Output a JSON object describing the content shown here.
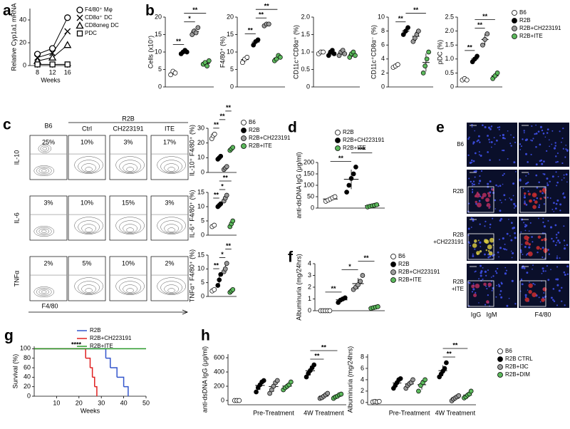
{
  "panel_labels": [
    "a",
    "b",
    "c",
    "d",
    "e",
    "f",
    "g",
    "h"
  ],
  "chart_data": [
    {
      "type": "line",
      "ylabel": "Relative Cyp1a1 mRNA",
      "xlabel": "Weeks",
      "x": [
        8,
        12,
        16
      ],
      "xlim": [
        6,
        17
      ],
      "xticks": [
        8,
        12,
        16
      ],
      "ylim": [
        0,
        50
      ],
      "yticks": [
        0,
        20,
        40
      ],
      "series": [
        {
          "name": "F4/80⁺ Mφ",
          "marker": "circle",
          "color": "#000000",
          "values": [
            10,
            15,
            42
          ]
        },
        {
          "name": "CD8α⁺ DC",
          "marker": "x",
          "color": "#000000",
          "values": [
            7,
            11,
            30
          ]
        },
        {
          "name": "CD8αneg DC",
          "marker": "triangle",
          "color": "#000000",
          "values": [
            4,
            7,
            18
          ]
        },
        {
          "name": "PDC",
          "marker": "square",
          "color": "#000000",
          "values": [
            1,
            1,
            1
          ]
        }
      ]
    },
    {
      "type": "dot",
      "ylabel": "Cells (x10⁷)",
      "ylim": [
        0,
        20
      ],
      "yticks": [
        0,
        5,
        10,
        15,
        20
      ],
      "series": [
        {
          "name": "B6",
          "color": "#ffffff",
          "values": [
            3.5,
            4.5,
            4
          ]
        },
        {
          "name": "R2B",
          "color": "#000000",
          "values": [
            9.5,
            10,
            10.5,
            10
          ]
        },
        {
          "name": "R2B+CH223191",
          "color": "#9a9a9a",
          "values": [
            15,
            16,
            15.5,
            17
          ]
        },
        {
          "name": "R2B+ITE",
          "color": "#5cb85c",
          "values": [
            6.5,
            7,
            6,
            7.5
          ]
        }
      ],
      "annotations": [
        {
          "text": "**",
          "from": 0,
          "to": 1
        },
        {
          "text": "*",
          "from": 1,
          "to": 2
        },
        {
          "text": "**",
          "from": 1,
          "to": 3
        }
      ]
    },
    {
      "type": "dot",
      "ylabel": "F4/80⁺ (%)",
      "ylim": [
        0,
        20
      ],
      "yticks": [
        0,
        5,
        10,
        15,
        20
      ],
      "series": [
        {
          "color": "#ffffff",
          "values": [
            7,
            8,
            8.5
          ]
        },
        {
          "color": "#000000",
          "values": [
            12,
            13,
            13.5
          ]
        },
        {
          "color": "#9a9a9a",
          "values": [
            17.5,
            18,
            18
          ]
        },
        {
          "color": "#5cb85c",
          "values": [
            7.5,
            8,
            9,
            8.5
          ]
        }
      ],
      "annotations": [
        {
          "text": "**",
          "from": 0,
          "to": 1
        },
        {
          "text": "**",
          "from": 1,
          "to": 2
        },
        {
          "text": "**",
          "from": 1,
          "to": 3
        }
      ]
    },
    {
      "type": "dot",
      "ylabel": "CD11c⁺CD8α⁺ (%)",
      "ylim": [
        0,
        2
      ],
      "yticks": [
        0,
        0.5,
        {
          "value": 1,
          "label": "1.0"
        },
        1.5,
        {
          "value": 2,
          "label": "2.0"
        }
      ],
      "series": [
        {
          "color": "#ffffff",
          "values": [
            0.95,
            1,
            1
          ]
        },
        {
          "color": "#000000",
          "values": [
            0.9,
            1,
            1.05,
            0.95
          ]
        },
        {
          "color": "#9a9a9a",
          "values": [
            0.9,
            1,
            1.05,
            0.95
          ]
        },
        {
          "color": "#5cb85c",
          "values": [
            0.85,
            0.95,
            1,
            0.9
          ]
        }
      ]
    },
    {
      "type": "dot",
      "ylabel": "CD11c⁺CD8α⁻ (%)",
      "ylim": [
        0,
        10
      ],
      "yticks": [
        0,
        2,
        4,
        6,
        8,
        10
      ],
      "series": [
        {
          "color": "#ffffff",
          "values": [
            2.8,
            3,
            3.2
          ]
        },
        {
          "color": "#000000",
          "values": [
            7.5,
            8,
            8.5
          ]
        },
        {
          "color": "#9a9a9a",
          "values": [
            6.5,
            7,
            7.5,
            8
          ]
        },
        {
          "color": "#5cb85c",
          "values": [
            2,
            3,
            4,
            5
          ]
        }
      ],
      "annotations": [
        {
          "text": "**",
          "from": 0,
          "to": 1
        },
        {
          "text": "**",
          "from": 1,
          "to": 3
        }
      ]
    },
    {
      "type": "dot",
      "ylabel": "pDC (%)",
      "ylim": [
        0,
        2.5
      ],
      "yticks": [
        0,
        0.5,
        {
          "value": 1,
          "label": "1.0"
        },
        1.5,
        {
          "value": 2,
          "label": "2.0"
        },
        2.5
      ],
      "series": [
        {
          "color": "#ffffff",
          "values": [
            0.25,
            0.3,
            0.25
          ]
        },
        {
          "color": "#000000",
          "values": [
            0.9,
            1,
            1.1
          ]
        },
        {
          "color": "#9a9a9a",
          "values": [
            1.5,
            1.7,
            1.9
          ]
        },
        {
          "color": "#5cb85c",
          "values": [
            0.3,
            0.4,
            0.5
          ]
        }
      ],
      "annotations": [
        {
          "text": "**",
          "from": 0,
          "to": 1
        },
        {
          "text": "**",
          "from": 1,
          "to": 2
        },
        {
          "text": "**",
          "from": 1,
          "to": 3
        }
      ]
    },
    {
      "type": "dot",
      "ylabel": "IL-10⁺ F4/80⁺ (%)",
      "ylim": [
        0,
        30
      ],
      "yticks": [
        0,
        10,
        20,
        30
      ],
      "series": [
        {
          "name": "B6",
          "color": "#ffffff",
          "values": [
            23,
            25,
            26
          ]
        },
        {
          "name": "R2B",
          "color": "#000000",
          "values": [
            9,
            10,
            11
          ]
        },
        {
          "name": "R2B+CH223191",
          "color": "#9a9a9a",
          "values": [
            2,
            3,
            4
          ]
        },
        {
          "name": "R2B+ITE",
          "color": "#5cb85c",
          "values": [
            15,
            16,
            17
          ]
        }
      ],
      "annotations": [
        {
          "text": "**",
          "from": 0,
          "to": 1
        },
        {
          "text": "**",
          "from": 1,
          "to": 2
        },
        {
          "text": "**",
          "from": 2,
          "to": 3
        }
      ]
    },
    {
      "type": "dot",
      "ylabel": "IL-6⁺ F4/80⁺ (%)",
      "ylim": [
        0,
        15
      ],
      "yticks": [
        0,
        5,
        10,
        15
      ],
      "series": [
        {
          "color": "#ffffff",
          "values": [
            3,
            3.5
          ]
        },
        {
          "color": "#000000",
          "values": [
            10,
            10.5,
            11
          ]
        },
        {
          "color": "#9a9a9a",
          "values": [
            12,
            13,
            14
          ]
        },
        {
          "color": "#5cb85c",
          "values": [
            3,
            4,
            5
          ]
        }
      ],
      "annotations": [
        {
          "text": "**",
          "from": 0,
          "to": 1
        },
        {
          "text": "*",
          "from": 1,
          "to": 2
        },
        {
          "text": "**",
          "from": 1,
          "to": 3
        }
      ]
    },
    {
      "type": "dot",
      "ylabel": "TNFα⁺ F4/80⁺ (%)",
      "ylim": [
        0,
        15
      ],
      "yticks": [
        0,
        5,
        10,
        15
      ],
      "series": [
        {
          "color": "#ffffff",
          "values": [
            2,
            2.5
          ]
        },
        {
          "color": "#000000",
          "values": [
            4,
            6,
            8
          ]
        },
        {
          "color": "#9a9a9a",
          "values": [
            9,
            10,
            12
          ]
        },
        {
          "color": "#5cb85c",
          "values": [
            1.5,
            2,
            2.5
          ]
        }
      ],
      "annotations": [
        {
          "text": "**",
          "from": 0,
          "to": 1
        },
        {
          "text": "*",
          "from": 1,
          "to": 2
        },
        {
          "text": "**",
          "from": 2,
          "to": 3
        }
      ]
    },
    {
      "type": "dot",
      "ylabel": "anti-dsDNA IgG (μg/ml)",
      "ylim": [
        0,
        200
      ],
      "yticks": [
        0,
        50,
        100,
        150,
        200
      ],
      "series": [
        {
          "name": "R2B",
          "color": "#ffffff",
          "values": [
            30,
            35,
            40,
            45,
            50
          ]
        },
        {
          "name": "R2B+CH223191",
          "color": "#000000",
          "values": [
            70,
            100,
            130,
            150,
            180
          ]
        },
        {
          "name": "R2B+ITE",
          "color": "#5cb85c",
          "values": [
            5,
            8,
            10,
            12,
            15
          ]
        }
      ],
      "annotations": [
        {
          "text": "**",
          "from": 0,
          "to": 1
        },
        {
          "text": "***",
          "from": 1,
          "to": 2
        }
      ]
    },
    {
      "type": "dot",
      "ylabel": "Albuminuria (mg/24hrs)",
      "ylim": [
        0,
        4
      ],
      "yticks": [
        0,
        1,
        2,
        3,
        4
      ],
      "series": [
        {
          "name": "B6",
          "color": "#ffffff",
          "values": [
            0,
            0,
            0,
            0,
            0
          ]
        },
        {
          "name": "R2B",
          "color": "#000000",
          "values": [
            0.7,
            0.9,
            1,
            1.1
          ]
        },
        {
          "name": "R2B+CH223191",
          "color": "#9a9a9a",
          "values": [
            1.8,
            2,
            2.2,
            2.5,
            3
          ]
        },
        {
          "name": "R2B+ITE",
          "color": "#5cb85c",
          "values": [
            0.2,
            0.25,
            0.3,
            0.35
          ]
        }
      ],
      "annotations": [
        {
          "text": "**",
          "from": 0,
          "to": 1
        },
        {
          "text": "*",
          "from": 1,
          "to": 2
        },
        {
          "text": "**",
          "from": 2,
          "to": 3
        }
      ]
    },
    {
      "type": "step",
      "ylabel": "Survival (%)",
      "xlabel": "Weeks",
      "xlim": [
        0,
        50
      ],
      "xticks": [
        10,
        20,
        30,
        40,
        50
      ],
      "ylim": [
        0,
        105
      ],
      "yticks": [
        0,
        20,
        40,
        60,
        80,
        100
      ],
      "annotation": "****",
      "series": [
        {
          "name": "R2B",
          "color": "#3355cc",
          "x": [
            0,
            32,
            34,
            37,
            40,
            42
          ],
          "values": [
            100,
            80,
            60,
            40,
            20,
            0
          ]
        },
        {
          "name": "R2B+CH223191",
          "color": "#e02020",
          "x": [
            0,
            23,
            25,
            26,
            27,
            28
          ],
          "values": [
            100,
            80,
            60,
            40,
            20,
            0
          ]
        },
        {
          "name": "R2B+ITE",
          "color": "#2a9a2a",
          "x": [
            0,
            50
          ],
          "values": [
            100,
            100
          ]
        }
      ]
    },
    {
      "type": "dot",
      "ylabel": "anti-dsDNA IgG (μg/ml)",
      "ylim": [
        -60,
        650
      ],
      "yticks": [
        0,
        200,
        400,
        600
      ],
      "categories": [
        null,
        "Pre-Treatment",
        "4W Treatment"
      ],
      "series": [
        {
          "color": "#ffffff",
          "values": [
            [
              0,
              0,
              0
            ],
            null,
            null
          ]
        },
        {
          "color": "#000000",
          "values": [
            null,
            [
              120,
              180,
              220,
              260,
              280
            ],
            [
              330,
              380,
              420,
              460,
              500
            ]
          ]
        },
        {
          "color": "#9a9a9a",
          "values": [
            null,
            [
              100,
              150,
              200,
              250,
              280
            ],
            [
              30,
              40,
              60,
              80,
              100
            ]
          ]
        },
        {
          "color": "#5cb85c",
          "values": [
            null,
            [
              150,
              180,
              200,
              220,
              260
            ],
            [
              30,
              50,
              60,
              80,
              90
            ]
          ]
        }
      ],
      "annotations": [
        {
          "text": "**",
          "from": 4,
          "to": 5
        },
        {
          "text": "**",
          "from": 4,
          "to": 6
        }
      ]
    },
    {
      "type": "dot",
      "ylabel": "Albuminuria (mg/24hrs)",
      "ylim": [
        -0.4,
        8.5
      ],
      "yticks": [
        0,
        2,
        4,
        6,
        8
      ],
      "categories": [
        null,
        "Pre-Treatment",
        "4W Treatment"
      ],
      "series": [
        {
          "name": "B6",
          "color": "#ffffff",
          "values": [
            [
              0.1,
              0.2,
              0.1,
              0.2
            ],
            null,
            null
          ]
        },
        {
          "name": "R2B CTRL",
          "color": "#000000",
          "values": [
            null,
            [
              2.5,
              3,
              3.5,
              4,
              4.2
            ],
            [
              4.5,
              5,
              5.5,
              6,
              7
            ]
          ]
        },
        {
          "name": "R2B+I3C",
          "color": "#9a9a9a",
          "values": [
            null,
            [
              2.5,
              3,
              3.3,
              3.5,
              4
            ],
            [
              0.3,
              0.6,
              0.8,
              1,
              1.2
            ]
          ]
        },
        {
          "name": "R2B+DIM",
          "color": "#5cb85c",
          "values": [
            null,
            [
              2,
              3,
              3.5,
              4
            ],
            [
              0.8,
              1,
              1.3,
              1.5,
              2
            ]
          ]
        }
      ],
      "annotations": [
        {
          "text": "**",
          "from": 4,
          "to": 5
        },
        {
          "text": "**",
          "from": 4,
          "to": 6
        }
      ]
    }
  ],
  "flow": {
    "columns": [
      "B6",
      "Ctrl",
      "CH223191",
      "ITE"
    ],
    "group": "R2B",
    "xlabel": "F4/80",
    "rows": [
      {
        "label": "IL-10",
        "percents": [
          "25%",
          "10%",
          "3%",
          "17%"
        ]
      },
      {
        "label": "IL-6",
        "percents": [
          "3%",
          "10%",
          "15%",
          "3%"
        ]
      },
      {
        "label": "TNFα",
        "percents": [
          "2%",
          "5%",
          "10%",
          "2%"
        ]
      }
    ]
  },
  "micro": {
    "rows": [
      [
        "B6"
      ],
      [
        "R2B"
      ],
      [
        "R2B",
        "+CH223191"
      ],
      [
        "R2B",
        "+ITE"
      ]
    ],
    "stains": [
      {
        "text": "IgG",
        "color": "#e03030"
      },
      {
        "text": "IgM",
        "color": "#30a030"
      },
      {
        "text": "F4/80",
        "color": "#e03030"
      }
    ]
  }
}
